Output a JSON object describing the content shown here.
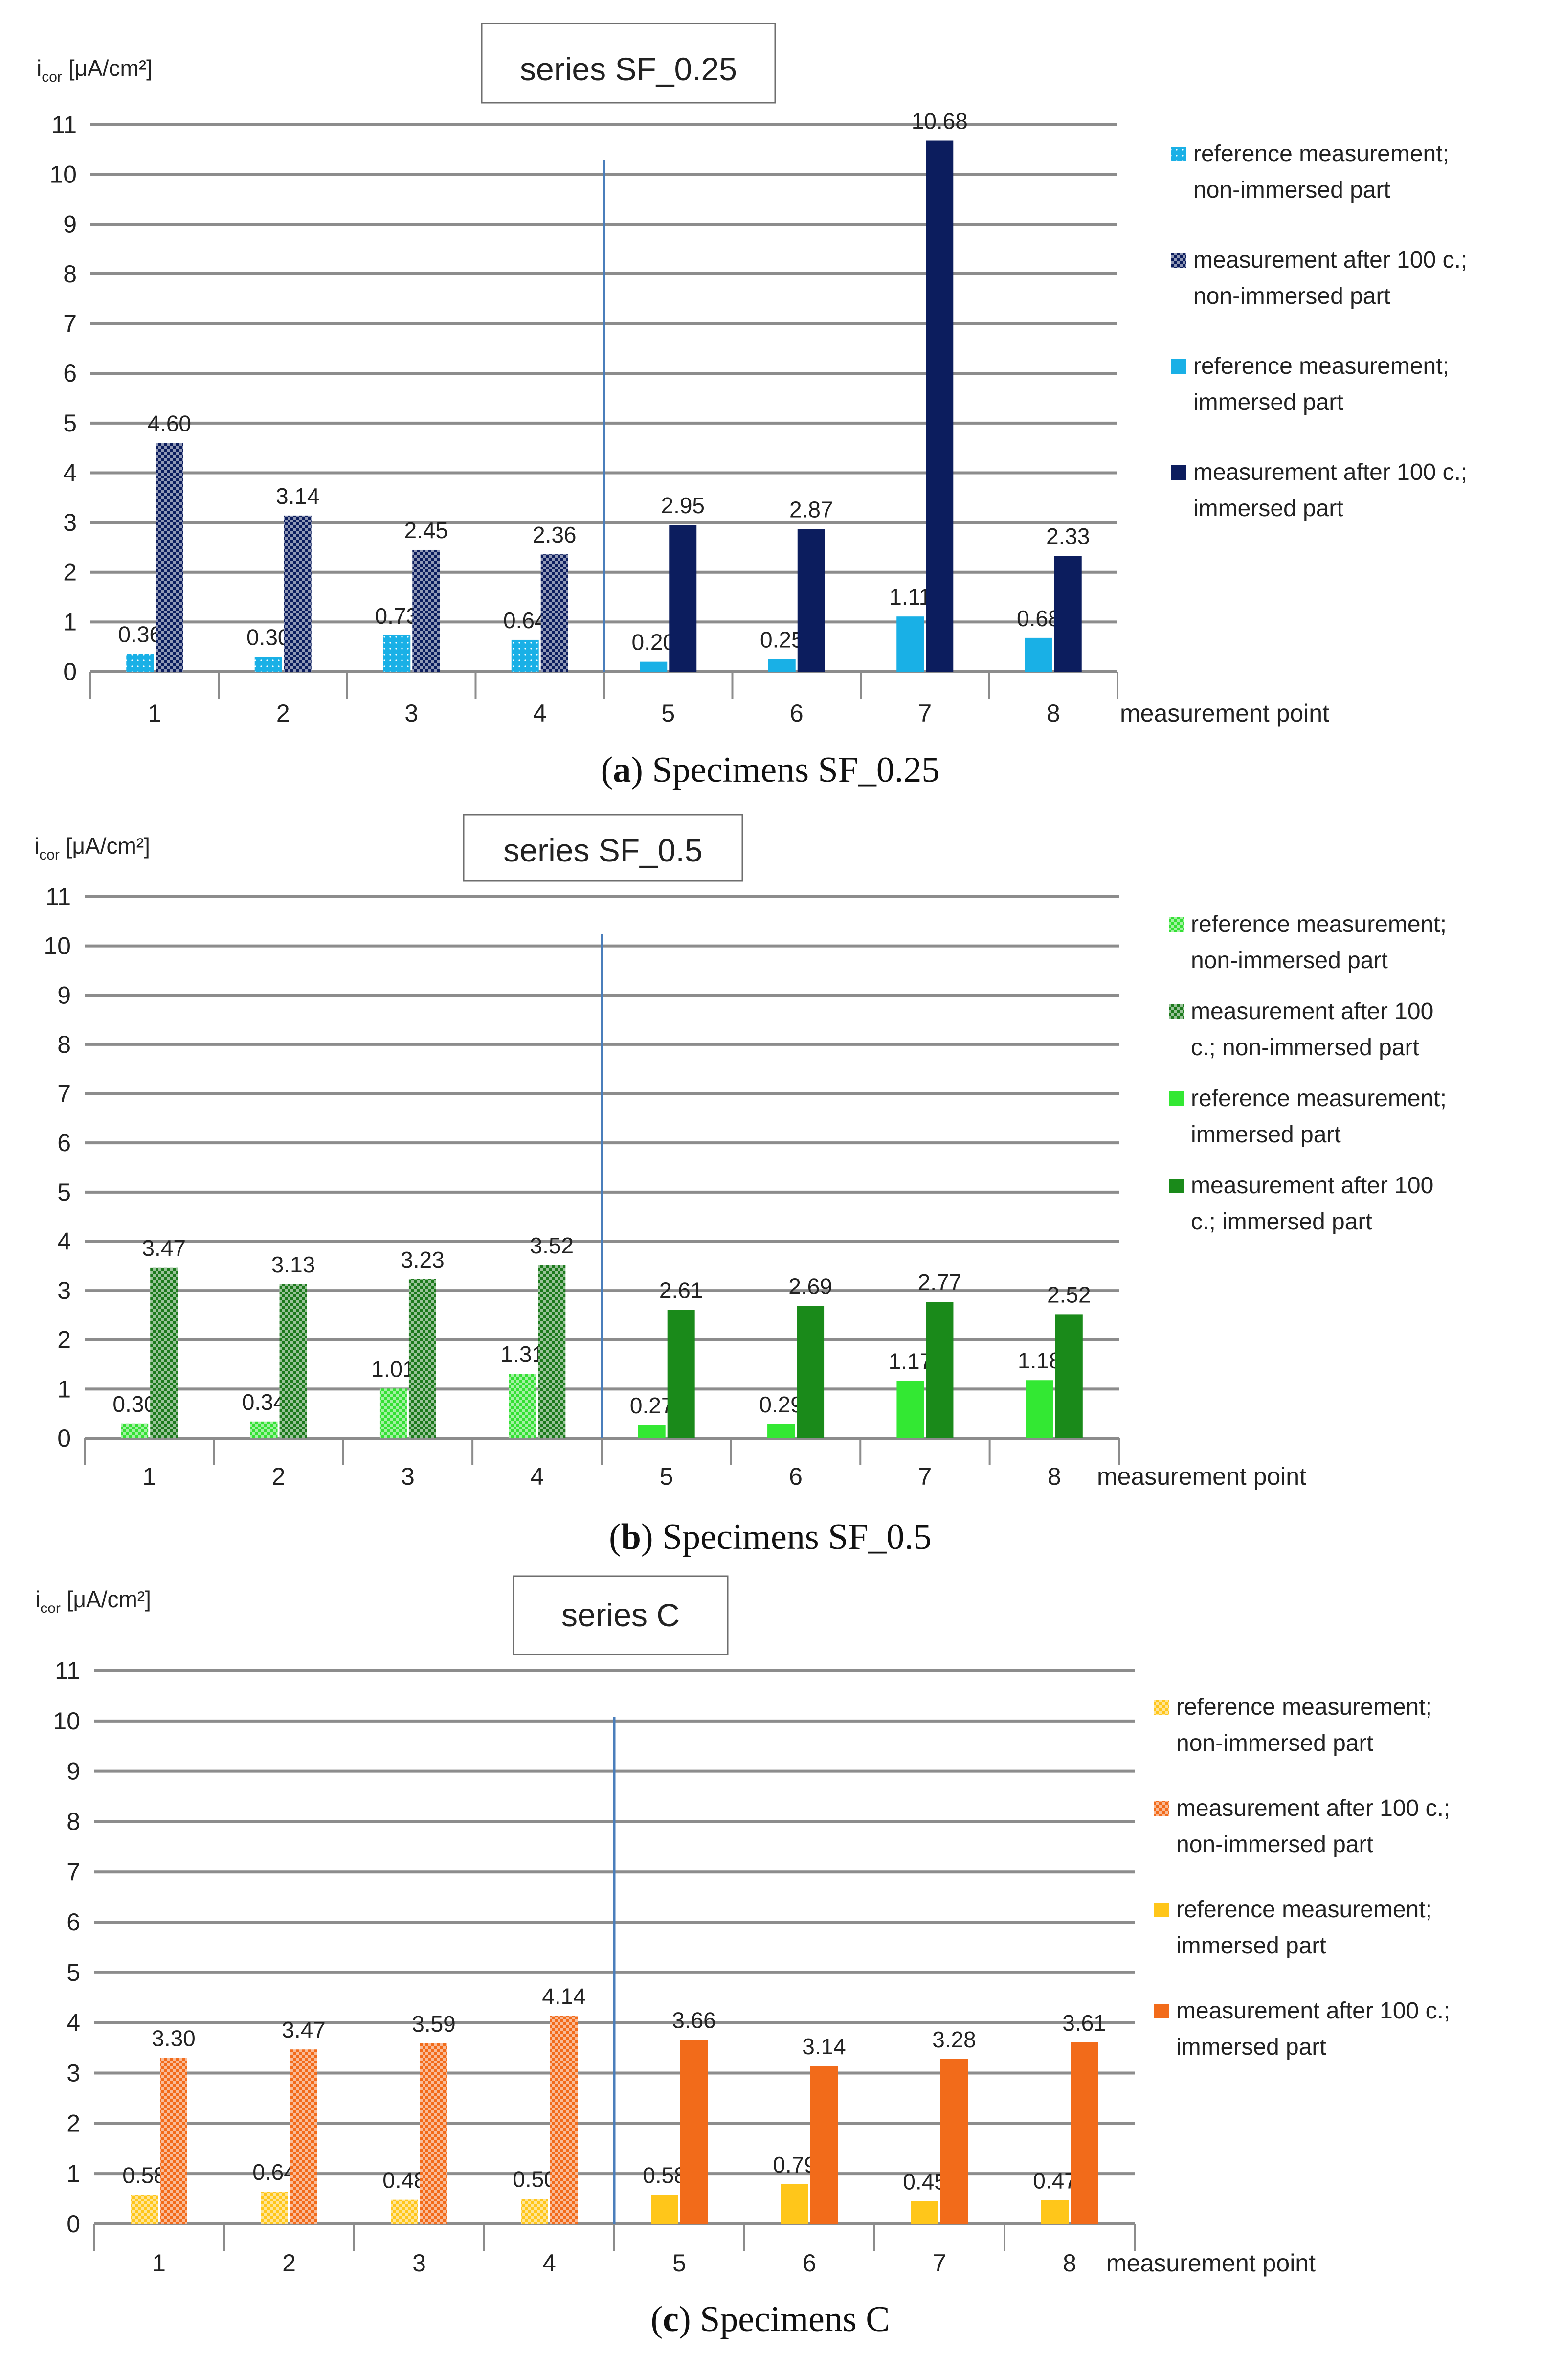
{
  "chart_data": [
    {
      "type": "bar",
      "title": "series SF_0.25",
      "ylabel_main": "i",
      "ylabel_sub": "cor",
      "ylabel_unit": "[μA/cm²]",
      "xlabel": "measurement point",
      "caption_letter": "a",
      "caption_text": "Specimens SF_0.25",
      "categories": [
        "1",
        "2",
        "3",
        "4",
        "5",
        "6",
        "7",
        "8"
      ],
      "y_ticks": [
        "0",
        "1",
        "2",
        "3",
        "4",
        "5",
        "6",
        "7",
        "8",
        "9",
        "10",
        "11"
      ],
      "ylim": [
        0,
        11
      ],
      "series": [
        {
          "name": "reference measurement; non-immersed part",
          "legend_lines": [
            "reference measurement;",
            "non-immersed part"
          ],
          "values": [
            0.36,
            0.3,
            0.73,
            0.64,
            null,
            null,
            null,
            null
          ],
          "labels": [
            "0.36",
            "0.30",
            "0.73",
            "0.64",
            "",
            "",
            "",
            ""
          ],
          "color": "#19b0e6",
          "pattern": "dots"
        },
        {
          "name": "measurement after 100 c.; non-immersed part",
          "legend_lines": [
            "measurement after 100 c.;",
            "non-immersed part"
          ],
          "values": [
            4.6,
            3.14,
            2.45,
            2.36,
            null,
            null,
            null,
            null
          ],
          "labels": [
            "4.60",
            "3.14",
            "2.45",
            "2.36",
            "",
            "",
            "",
            ""
          ],
          "color": "#0c1d5e",
          "pattern": "checker"
        },
        {
          "name": "reference measurement; immersed part",
          "legend_lines": [
            "reference measurement;",
            "immersed part"
          ],
          "values": [
            null,
            null,
            null,
            null,
            0.2,
            0.25,
            1.11,
            0.68
          ],
          "labels": [
            "",
            "",
            "",
            "",
            "0.20",
            "0.25",
            "1.11",
            "0.68"
          ],
          "color": "#19b0e6",
          "pattern": "solid"
        },
        {
          "name": "measurement after 100 c.; immersed part",
          "legend_lines": [
            "measurement after 100 c.;",
            "immersed part"
          ],
          "values": [
            null,
            null,
            null,
            null,
            2.95,
            2.87,
            10.68,
            2.33
          ],
          "labels": [
            "",
            "",
            "",
            "",
            "2.95",
            "2.87",
            "10.68",
            "2.33"
          ],
          "color": "#0c1d5e",
          "pattern": "solid"
        }
      ]
    },
    {
      "type": "bar",
      "title": "series SF_0.5",
      "ylabel_main": "i",
      "ylabel_sub": "cor",
      "ylabel_unit": "[μA/cm²]",
      "xlabel": "measurement point",
      "caption_letter": "b",
      "caption_text": "Specimens SF_0.5",
      "categories": [
        "1",
        "2",
        "3",
        "4",
        "5",
        "6",
        "7",
        "8"
      ],
      "y_ticks": [
        "0",
        "1",
        "2",
        "3",
        "4",
        "5",
        "6",
        "7",
        "8",
        "9",
        "10",
        "11"
      ],
      "ylim": [
        0,
        11
      ],
      "series": [
        {
          "name": "reference measurement; non-immersed part",
          "legend_lines": [
            "reference measurement;",
            "non-immersed part"
          ],
          "values": [
            0.3,
            0.34,
            1.01,
            1.31,
            null,
            null,
            null,
            null
          ],
          "labels": [
            "0.30",
            "0.34",
            "1.01",
            "1.31",
            "",
            "",
            "",
            ""
          ],
          "color": "#33e033",
          "pattern": "checker"
        },
        {
          "name": "measurement after 100 c.; non-immersed part",
          "legend_lines": [
            "measurement after 100",
            "c.; non-immersed part"
          ],
          "values": [
            3.47,
            3.13,
            3.23,
            3.52,
            null,
            null,
            null,
            null
          ],
          "labels": [
            "3.47",
            "3.13",
            "3.23",
            "3.52",
            "",
            "",
            "",
            ""
          ],
          "color": "#1c7a1c",
          "pattern": "checker"
        },
        {
          "name": "reference measurement; immersed part",
          "legend_lines": [
            "reference measurement;",
            "immersed part"
          ],
          "values": [
            null,
            null,
            null,
            null,
            0.27,
            0.29,
            1.17,
            1.18
          ],
          "labels": [
            "",
            "",
            "",
            "",
            "0.27",
            "0.29",
            "1.17",
            "1.18"
          ],
          "color": "#33e833",
          "pattern": "solid"
        },
        {
          "name": "measurement after 100 c.; immersed part",
          "legend_lines": [
            "measurement after 100",
            "c.; immersed part"
          ],
          "values": [
            null,
            null,
            null,
            null,
            2.61,
            2.69,
            2.77,
            2.52
          ],
          "labels": [
            "",
            "",
            "",
            "",
            "2.61",
            "2.69",
            "2.77",
            "2.52"
          ],
          "color": "#1a8a1a",
          "pattern": "solid"
        }
      ]
    },
    {
      "type": "bar",
      "title": "series C",
      "ylabel_main": "i",
      "ylabel_sub": "cor",
      "ylabel_unit": "[μA/cm²]",
      "xlabel": "measurement point",
      "caption_letter": "c",
      "caption_text": "Specimens C",
      "categories": [
        "1",
        "2",
        "3",
        "4",
        "5",
        "6",
        "7",
        "8"
      ],
      "y_ticks": [
        "0",
        "1",
        "2",
        "3",
        "4",
        "5",
        "6",
        "7",
        "8",
        "9",
        "10",
        "11"
      ],
      "ylim": [
        0,
        11
      ],
      "series": [
        {
          "name": "reference measurement; non-immersed part",
          "legend_lines": [
            "reference measurement;",
            "non-immersed part"
          ],
          "values": [
            0.58,
            0.64,
            0.48,
            0.5,
            null,
            null,
            null,
            null
          ],
          "labels": [
            "0.58",
            "0.64",
            "0.48",
            "0.50",
            "",
            "",
            "",
            ""
          ],
          "color": "#ffc61a",
          "pattern": "checker"
        },
        {
          "name": "measurement after 100 c.; non-immersed part",
          "legend_lines": [
            "measurement after 100 c.;",
            "non-immersed part"
          ],
          "values": [
            3.3,
            3.47,
            3.59,
            4.14,
            null,
            null,
            null,
            null
          ],
          "labels": [
            "3.30",
            "3.47",
            "3.59",
            "4.14",
            "",
            "",
            "",
            ""
          ],
          "color": "#f26b1a",
          "pattern": "checker"
        },
        {
          "name": "reference measurement; immersed part",
          "legend_lines": [
            "reference measurement;",
            "immersed part"
          ],
          "values": [
            null,
            null,
            null,
            null,
            0.58,
            0.79,
            0.45,
            0.47
          ],
          "labels": [
            "",
            "",
            "",
            "",
            "0.58",
            "0.79",
            "0.45",
            "0.47"
          ],
          "color": "#ffc61a",
          "pattern": "solid"
        },
        {
          "name": "measurement after 100 c.; immersed part",
          "legend_lines": [
            "measurement after 100 c.;",
            "immersed part"
          ],
          "values": [
            null,
            null,
            null,
            null,
            3.66,
            3.14,
            3.28,
            3.61
          ],
          "labels": [
            "",
            "",
            "",
            "",
            "3.66",
            "3.14",
            "3.28",
            "3.61"
          ],
          "color": "#f26b1a",
          "pattern": "solid"
        }
      ]
    }
  ]
}
